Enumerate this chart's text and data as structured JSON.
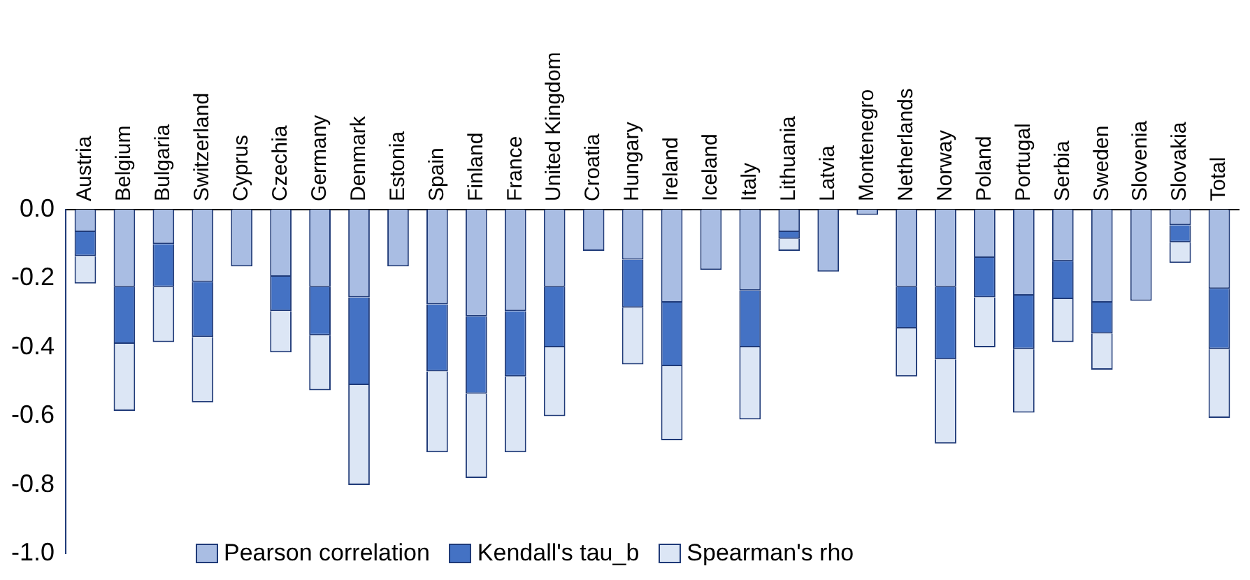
{
  "chart_data": {
    "type": "bar",
    "stacked": true,
    "categories": [
      "Austria",
      "Belgium",
      "Bulgaria",
      "Switzerland",
      "Cyprus",
      "Czechia",
      "Germany",
      "Denmark",
      "Estonia",
      "Spain",
      "Finland",
      "France",
      "United Kingdom",
      "Croatia",
      "Hungary",
      "Ireland",
      "Iceland",
      "Italy",
      "Lithuania",
      "Latvia",
      "Montenegro",
      "Netherlands",
      "Norway",
      "Poland",
      "Portugal",
      "Serbia",
      "Sweden",
      "Slovenia",
      "Slovakia",
      "Total"
    ],
    "series": [
      {
        "name": "Pearson correlation",
        "color": "#a9bde3",
        "values": [
          -0.065,
          -0.225,
          -0.1,
          -0.21,
          -0.165,
          -0.195,
          -0.225,
          -0.255,
          -0.165,
          -0.275,
          -0.31,
          -0.295,
          -0.225,
          -0.12,
          -0.145,
          -0.27,
          -0.175,
          -0.235,
          -0.065,
          -0.18,
          -0.015,
          -0.225,
          -0.225,
          -0.14,
          -0.25,
          -0.15,
          -0.27,
          -0.265,
          -0.045,
          -0.23
        ]
      },
      {
        "name": "Kendall's tau_b",
        "color": "#4472c4",
        "values": [
          -0.07,
          -0.165,
          -0.125,
          -0.16,
          null,
          -0.1,
          -0.14,
          -0.255,
          null,
          -0.195,
          -0.225,
          -0.19,
          -0.175,
          null,
          -0.14,
          -0.185,
          null,
          -0.165,
          -0.02,
          null,
          null,
          -0.12,
          -0.21,
          -0.115,
          -0.155,
          -0.11,
          -0.09,
          null,
          -0.05,
          -0.175
        ]
      },
      {
        "name": "Spearman's rho",
        "color": "#dce6f5",
        "values": [
          -0.08,
          -0.195,
          -0.16,
          -0.19,
          null,
          -0.12,
          -0.16,
          -0.29,
          null,
          -0.235,
          -0.245,
          -0.22,
          -0.2,
          null,
          -0.165,
          -0.215,
          null,
          -0.21,
          -0.035,
          null,
          null,
          -0.14,
          -0.245,
          -0.145,
          -0.185,
          -0.125,
          -0.105,
          null,
          -0.06,
          -0.2
        ]
      }
    ],
    "ylim": [
      -1.0,
      0.0
    ],
    "yticks": [
      {
        "value": 0,
        "label": "0.0"
      },
      {
        "value": -0.2,
        "label": "-0.2"
      },
      {
        "value": -0.4,
        "label": "-0.4"
      },
      {
        "value": -0.6,
        "label": "-0.6"
      },
      {
        "value": -0.8,
        "label": "-0.8"
      },
      {
        "value": -1.0,
        "label": "-1.0"
      }
    ],
    "grid": false,
    "legend": "bottom"
  }
}
